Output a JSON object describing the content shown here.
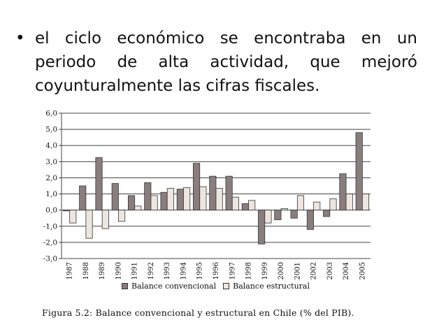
{
  "slide": {
    "bullet": "•",
    "lines": [
      "el ciclo económico se encontraba en un",
      "periodo de alta actividad, que mejoró",
      "coyunturalmente las cifras fiscales."
    ]
  },
  "caption": "Figura 5.2: Balance convencional y estructural en Chile (% del PIB).",
  "colors": {
    "convencional": "#8a7d7d",
    "estructural": "#ece6df",
    "bar_stroke": "#333333",
    "grid": "#444444"
  },
  "chart_data": {
    "type": "bar",
    "title": "",
    "xlabel": "",
    "ylabel": "",
    "ylim": [
      -3.0,
      6.0
    ],
    "yticks": [
      "6,0",
      "5,0",
      "4,0",
      "3,0",
      "2,0",
      "1,0",
      "0,0",
      "-1,0",
      "-2,0",
      "-3,0"
    ],
    "grid": true,
    "legend": "bottom",
    "categories": [
      "1987",
      "1988",
      "1989",
      "1990",
      "1991",
      "1992",
      "1993",
      "1994",
      "1995",
      "1996",
      "1997",
      "1998",
      "1999",
      "2000",
      "2001",
      "2002",
      "2003",
      "2004",
      "2005"
    ],
    "series": [
      {
        "name": "Balance convencional",
        "values": [
          -0.05,
          1.5,
          3.25,
          1.65,
          0.9,
          1.7,
          1.1,
          1.3,
          2.9,
          2.1,
          2.1,
          0.4,
          -2.1,
          -0.6,
          -0.5,
          -1.2,
          -0.4,
          2.25,
          4.8
        ]
      },
      {
        "name": "Balance estructural",
        "values": [
          -0.8,
          -1.75,
          -1.15,
          -0.7,
          0.25,
          0.9,
          1.35,
          1.4,
          1.45,
          1.35,
          0.8,
          0.6,
          -0.8,
          0.1,
          0.9,
          0.5,
          0.7,
          1.0,
          1.0
        ]
      }
    ]
  }
}
